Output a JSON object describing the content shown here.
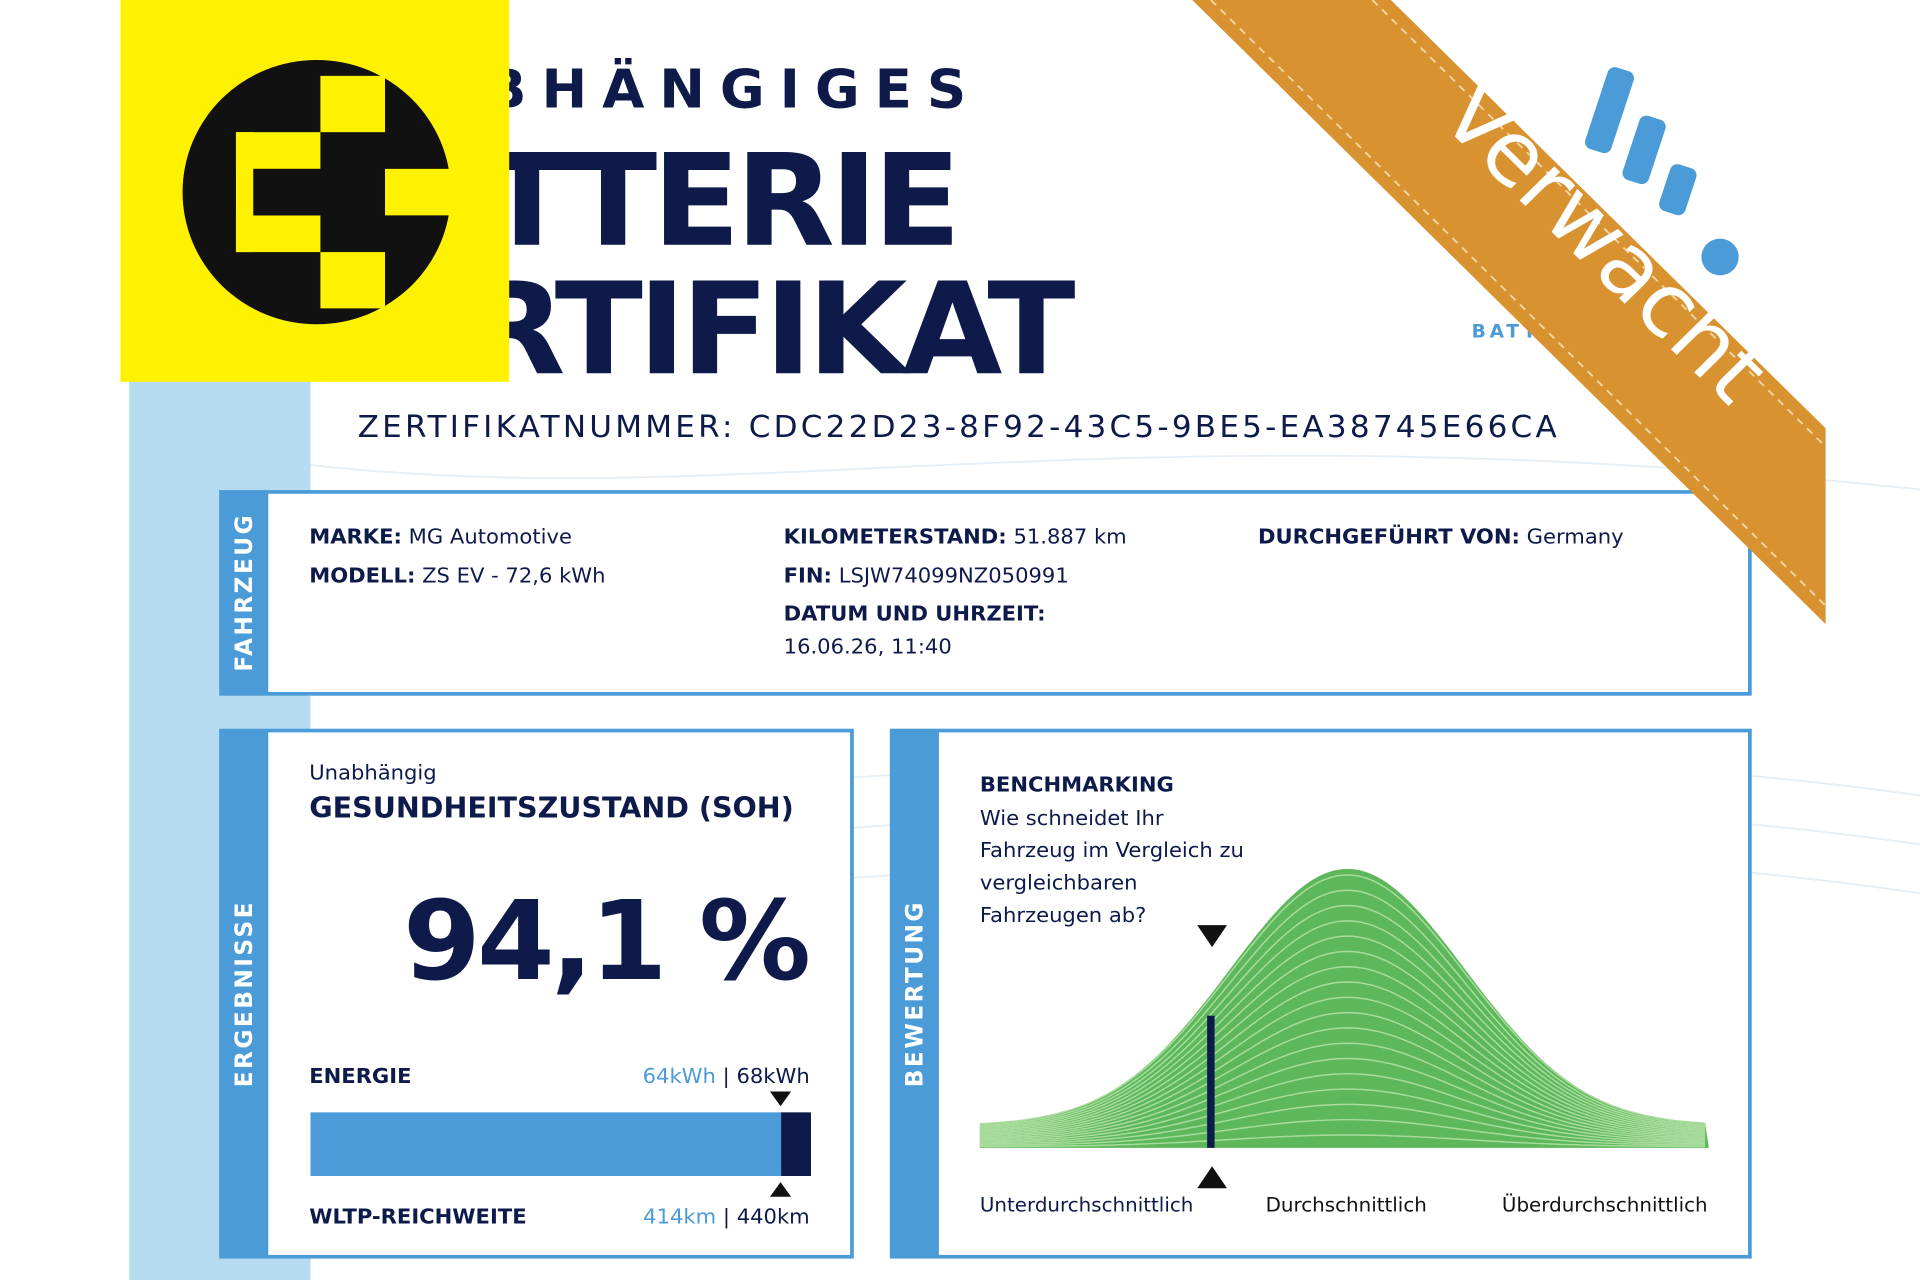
{
  "header": {
    "title_lines": [
      "UNABHÄNGIGES",
      "BATTERIE",
      "ZERTIFIKAT"
    ],
    "certificate_number": "ZERTIFIKATNUMMER: CDC22D23-8F92-43C5-9BE5-EA38745E66CA",
    "brand_fragment": "BATT"
  },
  "ribbon": "Verwacht",
  "vehicle": {
    "section": "FAHRZEUG",
    "fields": [
      {
        "label": "MARKE:",
        "value": "MG Automotive"
      },
      {
        "label": "MODELL:",
        "value": "ZS EV - 72,6 kWh"
      },
      {
        "label": "KILOMETERSTAND:",
        "value": "51.887 km"
      },
      {
        "label": "FIN:",
        "value": "LSJW74099NZ050991"
      },
      {
        "label": "DATUM UND UHRZEIT:",
        "value": "16.06.26, 11:40"
      },
      {
        "label": "DURCHGEFÜHRT VON:",
        "value": "Germany"
      }
    ]
  },
  "results": {
    "section": "ERGEBNISSE",
    "subtitle": "Unabhängig",
    "title": "GESUNDHEITSZUSTAND (SOH)",
    "soh": "94,1 %",
    "energy": {
      "label": "ENERGIE",
      "current": "64kWh",
      "separator": "|",
      "nominal": "68kWh"
    },
    "range": {
      "label": "WLTP-REICHWEITE",
      "current": "414km",
      "separator": "|",
      "nominal": "440km"
    }
  },
  "rating": {
    "section": "BEWERTUNG",
    "title": "BENCHMARKING",
    "question": [
      "Wie schneidet Ihr",
      "Fahrzeug im Vergleich zu",
      "vergleichbaren",
      "Fahrzeugen ab?"
    ],
    "scale": [
      "Unterdurchschnittlich",
      "Durchschnittlich",
      "Überdurchschnittlich"
    ]
  }
}
